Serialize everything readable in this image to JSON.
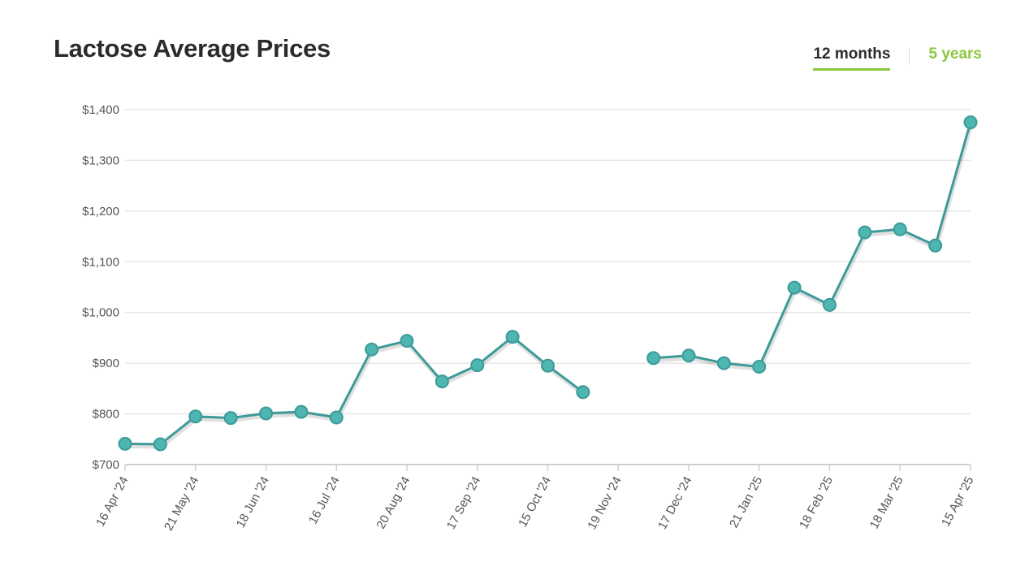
{
  "header": {
    "title": "Lactose Average Prices",
    "tabs": [
      {
        "label": "12 months",
        "active": true
      },
      {
        "label": "5 years",
        "active": false
      }
    ]
  },
  "colors": {
    "line": "#3d9a98",
    "point": "#4db6b0",
    "accent": "#8cc63f",
    "grid": "#e6e6e6"
  },
  "chart_data": {
    "type": "line",
    "title": "Lactose Average Prices",
    "xlabel": "",
    "ylabel": "",
    "ylim": [
      700,
      1400
    ],
    "yticks": [
      700,
      800,
      900,
      1000,
      1100,
      1200,
      1300,
      1400
    ],
    "ytick_labels": [
      "$700",
      "$800",
      "$900",
      "$1,000",
      "$1,100",
      "$1,200",
      "$1,300",
      "$1,400"
    ],
    "xtick_labels": [
      "16 Apr '24",
      "21 May '24",
      "18 Jun '24",
      "16 Jul '24",
      "20 Aug '24",
      "17 Sep '24",
      "15 Oct '24",
      "19 Nov '24",
      "17 Dec '24",
      "21 Jan '25",
      "18 Feb '25",
      "18 Mar '25",
      "15 Apr '25"
    ],
    "grid": true,
    "legend": "none",
    "series": [
      {
        "values": [
          741,
          740,
          795,
          792,
          801,
          804,
          793,
          927,
          944,
          864,
          896,
          952,
          895,
          843,
          null,
          910,
          915,
          900,
          893,
          1049,
          1015,
          1158,
          1164,
          1132,
          1375
        ]
      }
    ]
  }
}
